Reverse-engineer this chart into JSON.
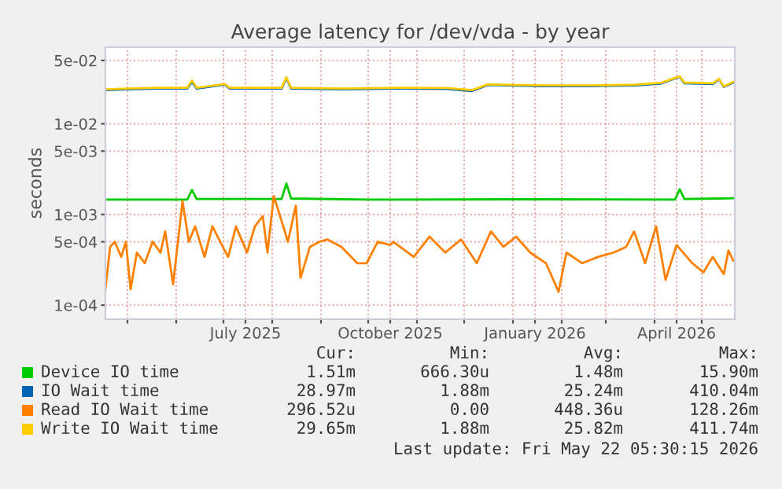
{
  "chart_data": {
    "type": "line",
    "title": "Average latency for /dev/vda - by year",
    "ylabel": "seconds",
    "log": "y",
    "grid": true,
    "legend": "bottom",
    "marker": "none",
    "line_style": "solid",
    "xlim": [
      "2025-04-17",
      "2026-05-22"
    ],
    "ylim": [
      7e-05,
      0.07
    ],
    "xticks": [
      {
        "value": "2025-05-01",
        "label": null
      },
      {
        "value": "2025-06-01",
        "label": null
      },
      {
        "value": "2025-07-01",
        "label": null
      },
      {
        "value": "2025-07-15",
        "label": "July 2025"
      },
      {
        "value": "2025-08-01",
        "label": null
      },
      {
        "value": "2025-09-01",
        "label": null
      },
      {
        "value": "2025-10-01",
        "label": null
      },
      {
        "value": "2025-10-15",
        "label": "October 2025"
      },
      {
        "value": "2025-11-01",
        "label": null
      },
      {
        "value": "2025-12-01",
        "label": null
      },
      {
        "value": "2026-01-01",
        "label": null
      },
      {
        "value": "2026-01-15",
        "label": "January 2026"
      },
      {
        "value": "2026-02-01",
        "label": null
      },
      {
        "value": "2026-03-01",
        "label": null
      },
      {
        "value": "2026-04-01",
        "label": null
      },
      {
        "value": "2026-04-15",
        "label": "April 2026"
      },
      {
        "value": "2026-05-01",
        "label": null
      }
    ],
    "yticks": [
      {
        "value": 0.0001,
        "label": "1e-04"
      },
      {
        "value": 0.0005,
        "label": "5e-04"
      },
      {
        "value": 0.001,
        "label": "1e-03"
      },
      {
        "value": 0.005,
        "label": "5e-03"
      },
      {
        "value": 0.01,
        "label": "1e-02"
      },
      {
        "value": 0.05,
        "label": "5e-02"
      }
    ],
    "series": [
      {
        "name": "Device IO time",
        "color": "#00cc00",
        "x": [
          "2025-04-17",
          "2025-06-08",
          "2025-06-11",
          "2025-06-14",
          "2025-08-07",
          "2025-08-10",
          "2025-08-13",
          "2025-10-01",
          "2026-01-01",
          "2026-04-14",
          "2026-04-17",
          "2026-04-20",
          "2026-05-12",
          "2026-05-21"
        ],
        "values": [
          0.00146,
          0.00146,
          0.00186,
          0.00148,
          0.00148,
          0.0022,
          0.0015,
          0.00146,
          0.00147,
          0.00146,
          0.0019,
          0.00148,
          0.0015,
          0.00151
        ]
      },
      {
        "name": "IO Wait time",
        "color": "#0066b3",
        "x": [
          "2025-04-17",
          "2025-05-01",
          "2025-05-20",
          "2025-06-08",
          "2025-06-11",
          "2025-06-14",
          "2025-07-02",
          "2025-07-05",
          "2025-08-07",
          "2025-08-10",
          "2025-08-13",
          "2025-09-15",
          "2025-10-20",
          "2025-11-20",
          "2025-12-06",
          "2025-12-16",
          "2026-01-20",
          "2026-02-20",
          "2026-03-20",
          "2026-04-05",
          "2026-04-17",
          "2026-04-20",
          "2026-05-08",
          "2026-05-12",
          "2026-05-15",
          "2026-05-21"
        ],
        "values": [
          0.0235,
          0.024,
          0.0245,
          0.0245,
          0.029,
          0.0245,
          0.027,
          0.0245,
          0.0245,
          0.032,
          0.0245,
          0.024,
          0.0245,
          0.0243,
          0.023,
          0.0268,
          0.026,
          0.026,
          0.0265,
          0.0278,
          0.033,
          0.028,
          0.0275,
          0.031,
          0.0255,
          0.0285
        ]
      },
      {
        "name": "Read IO Wait time",
        "color": "#ff8000",
        "x": [
          "2025-04-17",
          "2025-04-20",
          "2025-04-23",
          "2025-04-27",
          "2025-04-30",
          "2025-05-03",
          "2025-05-07",
          "2025-05-12",
          "2025-05-17",
          "2025-05-22",
          "2025-05-25",
          "2025-05-30",
          "2025-06-05",
          "2025-06-09",
          "2025-06-13",
          "2025-06-19",
          "2025-06-24",
          "2025-06-29",
          "2025-07-04",
          "2025-07-09",
          "2025-07-16",
          "2025-07-21",
          "2025-07-26",
          "2025-07-29",
          "2025-08-02",
          "2025-08-08",
          "2025-08-11",
          "2025-08-16",
          "2025-08-19",
          "2025-08-25",
          "2025-08-31",
          "2025-09-05",
          "2025-09-14",
          "2025-09-24",
          "2025-09-30",
          "2025-10-07",
          "2025-10-15",
          "2025-10-17",
          "2025-10-30",
          "2025-11-09",
          "2025-11-19",
          "2025-11-29",
          "2025-12-09",
          "2025-12-18",
          "2025-12-26",
          "2026-01-03",
          "2026-01-12",
          "2026-01-22",
          "2026-01-30",
          "2026-02-04",
          "2026-02-14",
          "2026-02-24",
          "2026-03-06",
          "2026-03-14",
          "2026-03-19",
          "2026-03-26",
          "2026-04-02",
          "2026-04-08",
          "2026-04-15",
          "2026-04-25",
          "2026-05-02",
          "2026-05-08",
          "2026-05-15",
          "2026-05-18",
          "2026-05-21"
        ],
        "values": [
          0.00015,
          0.00044,
          0.0005,
          0.00034,
          0.0005,
          0.00015,
          0.00038,
          0.00029,
          0.0005,
          0.00038,
          0.00065,
          0.00017,
          0.0014,
          0.0005,
          0.00074,
          0.00034,
          0.00074,
          0.0005,
          0.00034,
          0.00074,
          0.00038,
          0.00074,
          0.00096,
          0.00038,
          0.0016,
          0.00074,
          0.0005,
          0.00125,
          0.0002,
          0.00044,
          0.0005,
          0.00053,
          0.00044,
          0.00029,
          0.00029,
          0.0005,
          0.00046,
          0.0005,
          0.00034,
          0.00057,
          0.00038,
          0.00053,
          0.00029,
          0.00065,
          0.00044,
          0.00057,
          0.00038,
          0.00029,
          0.00014,
          0.00038,
          0.00029,
          0.00034,
          0.00038,
          0.00044,
          0.00065,
          0.00029,
          0.00074,
          0.00019,
          0.00046,
          0.00029,
          0.00023,
          0.00034,
          0.00022,
          0.0004,
          0.00031
        ]
      },
      {
        "name": "Write IO Wait time",
        "color": "#ffcc00",
        "x": [
          "2025-04-17",
          "2025-05-01",
          "2025-05-20",
          "2025-06-08",
          "2025-06-11",
          "2025-06-14",
          "2025-07-02",
          "2025-07-05",
          "2025-08-07",
          "2025-08-10",
          "2025-08-13",
          "2025-09-15",
          "2025-10-20",
          "2025-11-20",
          "2025-12-06",
          "2025-12-16",
          "2026-01-20",
          "2026-02-20",
          "2026-03-20",
          "2026-04-05",
          "2026-04-17",
          "2026-04-20",
          "2026-05-08",
          "2026-05-12",
          "2026-05-15",
          "2026-05-21"
        ],
        "values": [
          0.024,
          0.0245,
          0.025,
          0.025,
          0.03,
          0.025,
          0.0275,
          0.025,
          0.025,
          0.0326,
          0.025,
          0.0245,
          0.025,
          0.0248,
          0.0235,
          0.0272,
          0.0265,
          0.0265,
          0.027,
          0.0283,
          0.0334,
          0.0285,
          0.028,
          0.0313,
          0.0258,
          0.029
        ]
      }
    ],
    "annotations": [
      "Cur:",
      "Min:",
      "Avg:",
      "Max:",
      "1.51m",
      "666.30u",
      "1.48m",
      "15.90m",
      "28.97m",
      "1.88m",
      "25.24m",
      "410.04m",
      "296.52u",
      "0.00",
      "448.36u",
      "128.26m",
      "29.65m",
      "1.88m",
      "25.82m",
      "411.74m",
      "Last update: Fri May 22 05:30:15 2026"
    ]
  }
}
